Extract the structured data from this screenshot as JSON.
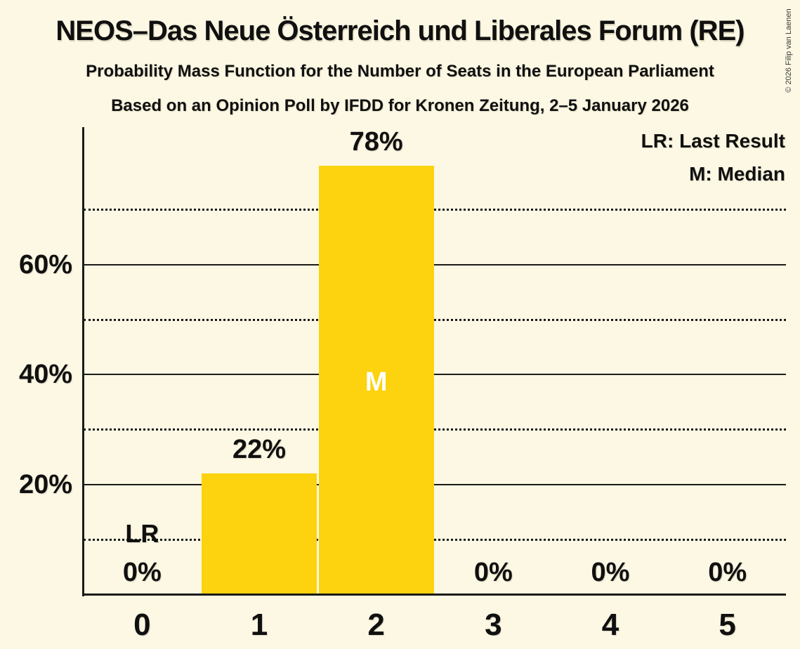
{
  "header": {
    "title": "NEOS–Das Neue Österreich und Liberales Forum (RE)",
    "subtitle": "Probability Mass Function for the Number of Seats in the European Parliament",
    "poll_line": "Based on an Opinion Poll by IFDD for Kronen Zeitung, 2–5 January 2026"
  },
  "copyright": "© 2026 Filip van Laenen",
  "legend": {
    "lr": "LR: Last Result",
    "m": "M: Median"
  },
  "chart_data": {
    "type": "bar",
    "title": "Probability Mass Function for the Number of Seats in the European Parliament",
    "categories": [
      "0",
      "1",
      "2",
      "3",
      "4",
      "5"
    ],
    "values": [
      0,
      22,
      78,
      0,
      0,
      0
    ],
    "value_labels": [
      "0%",
      "22%",
      "78%",
      "0%",
      "0%",
      "0%"
    ],
    "y_ticks": [
      20,
      40,
      60
    ],
    "y_tick_labels": [
      "20%",
      "40%",
      "60%"
    ],
    "solid_gridlines": [
      20,
      40,
      60
    ],
    "dotted_gridlines": [
      10,
      30,
      50,
      70
    ],
    "ylim": [
      0,
      85
    ],
    "grid": true,
    "legend_position": "top-right",
    "last_result_seats": 0,
    "last_result_label": "LR",
    "median_seats": 2,
    "median_label": "M",
    "bar_color": "#FCD30E",
    "background_color": "#FCF8E4",
    "line_color": "#1B1B18",
    "text_color": "#101010"
  }
}
